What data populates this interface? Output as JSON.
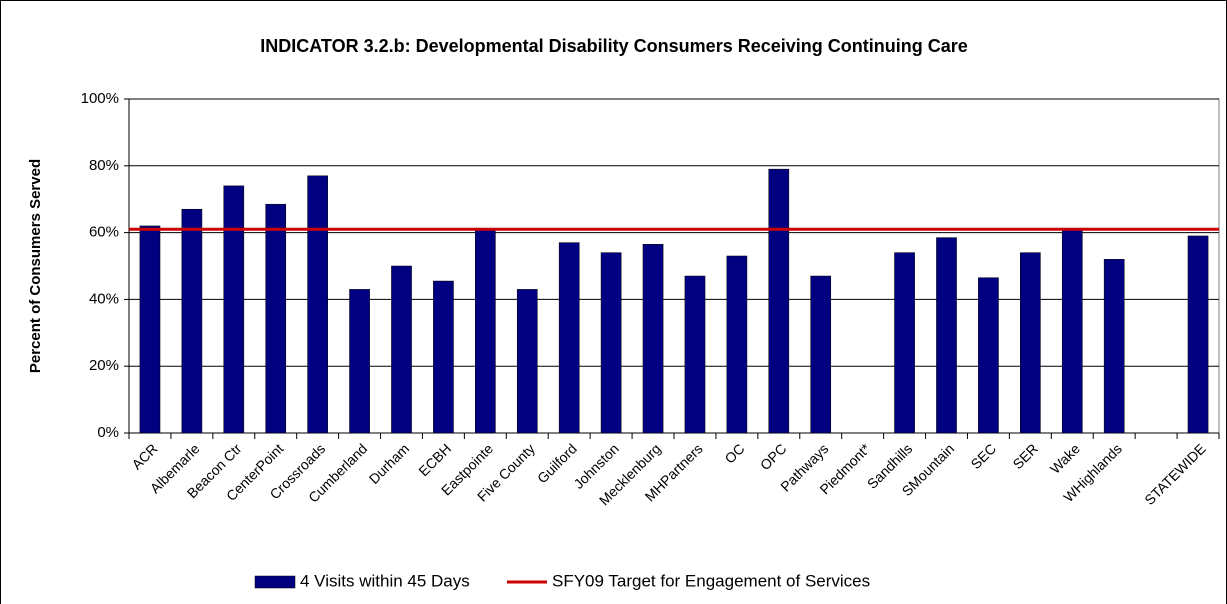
{
  "chart_data": {
    "type": "bar",
    "title": "INDICATOR 3.2.b: Developmental Disability Consumers Receiving Continuing Care",
    "y_label": "Percent of Consumers Served",
    "categories": [
      "ACR",
      "Albemarle",
      "Beacon Ctr",
      "CenterPoint",
      "Crossroads",
      "Cumberland",
      "Durham",
      "ECBH",
      "Eastpointe",
      "Five County",
      "Guilford",
      "Johnston",
      "Mecklenburg",
      "MHPartners",
      "OC",
      "OPC",
      "Pathways",
      "Piedmont*",
      "Sandhills",
      "SMountain",
      "SEC",
      "SER",
      "Wake",
      "WHighlands",
      null,
      "STATEWIDE"
    ],
    "series": [
      {
        "name": "4 Visits within 45 Days",
        "color": "#000080",
        "values": [
          62,
          67,
          74,
          68.5,
          77,
          43,
          50,
          45.5,
          61,
          43,
          57,
          54,
          56.5,
          47,
          53,
          79,
          47,
          null,
          54,
          58.5,
          46.5,
          54,
          61,
          52,
          null,
          59
        ]
      }
    ],
    "target": {
      "name": "SFY09 Target for Engagement of Services",
      "color": "#cc0000",
      "value": 61
    },
    "ylim": [
      0,
      100
    ],
    "yticks": [
      {
        "value": 0,
        "label": "0%"
      },
      {
        "value": 20,
        "label": "20%"
      },
      {
        "value": 40,
        "label": "40%"
      },
      {
        "value": 60,
        "label": "60%"
      },
      {
        "value": 80,
        "label": "80%"
      },
      {
        "value": 100,
        "label": "100%"
      }
    ],
    "grid": true,
    "legend": "bottom"
  }
}
